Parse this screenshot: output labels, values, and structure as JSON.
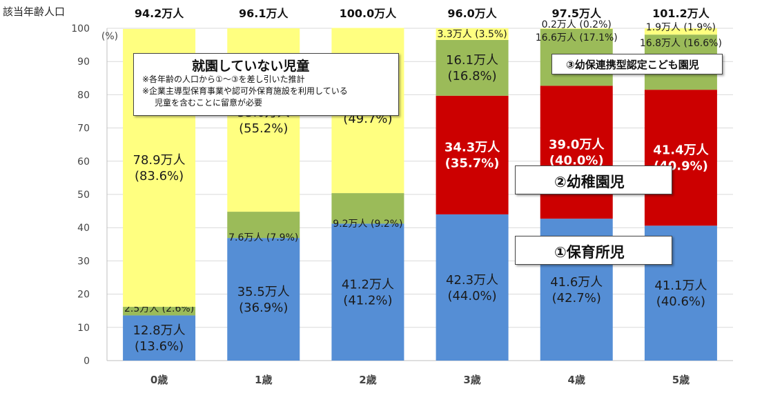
{
  "header": {
    "population_label": "該当年齢人口"
  },
  "chart_data": {
    "type": "bar",
    "stacked": true,
    "ylabel": "(%)",
    "ylim": [
      0,
      100
    ],
    "yticks": [
      0,
      10,
      20,
      30,
      40,
      50,
      60,
      70,
      80,
      90,
      100
    ],
    "grid": true,
    "categories": [
      "0歳",
      "1歳",
      "2歳",
      "3歳",
      "4歳",
      "5歳"
    ],
    "totals": [
      "94.2万人",
      "96.1万人",
      "100.0万人",
      "96.0万人",
      "97.5万人",
      "101.2万人"
    ],
    "series": [
      {
        "key": "hoikusho",
        "color": "#558ed5",
        "values": [
          13.6,
          36.9,
          41.2,
          44.0,
          42.7,
          40.6
        ],
        "labels": [
          [
            "12.8万人",
            "(13.6%)"
          ],
          [
            "35.5万人",
            "(36.9%)"
          ],
          [
            "41.2万人",
            "(41.2%)"
          ],
          [
            "42.3万人",
            "(44.0%)"
          ],
          [
            "41.6万人",
            "(42.7%)"
          ],
          [
            "41.1万人",
            "(40.6%)"
          ]
        ]
      },
      {
        "key": "yochien",
        "color": "#cc0000",
        "values": [
          0,
          0,
          0,
          35.7,
          40.0,
          40.9
        ],
        "labels": [
          null,
          null,
          null,
          [
            "34.3万人",
            "(35.7%)"
          ],
          [
            "39.0万人",
            "(40.0%)"
          ],
          [
            "41.4万人",
            "(40.9%)"
          ]
        ]
      },
      {
        "key": "nintei",
        "color": "#9bbb59",
        "values": [
          2.6,
          7.9,
          9.2,
          16.8,
          17.1,
          16.6
        ],
        "labels": [
          [
            "2.5万人 (2.6%)"
          ],
          [
            "7.6万人 (7.9%)"
          ],
          [
            "9.2万人 (9.2%)"
          ],
          [
            "16.1万人",
            "(16.8%)"
          ],
          [
            "16.6万人 (17.1%)"
          ],
          [
            "16.8万人 (16.6%)"
          ]
        ]
      },
      {
        "key": "not_enrolled",
        "color": "#ffff80",
        "values": [
          83.6,
          55.2,
          49.7,
          3.5,
          0.2,
          1.9
        ],
        "labels": [
          [
            "78.9万人",
            "(83.6%)"
          ],
          [
            "53.0万人",
            "(55.2%)"
          ],
          [
            "49.7万人",
            "(49.7%)"
          ],
          [
            "3.3万人 (3.5%)"
          ],
          [
            "0.2万人 (0.2%)"
          ],
          [
            "1.9万人 (1.9%)"
          ]
        ]
      }
    ]
  },
  "callouts": {
    "not_enrolled": {
      "title": "就園していない児童",
      "note1": "※各年齢の人口から①～③を差し引いた推計",
      "note2": "※企業主導型保育事業や認可外保育施設を利用している",
      "note3": "児童を含むことに留意が必要"
    },
    "nintei": "③幼保連携型認定こども園児",
    "yochien": "②幼稚園児",
    "hoikusho": "①保育所児"
  }
}
